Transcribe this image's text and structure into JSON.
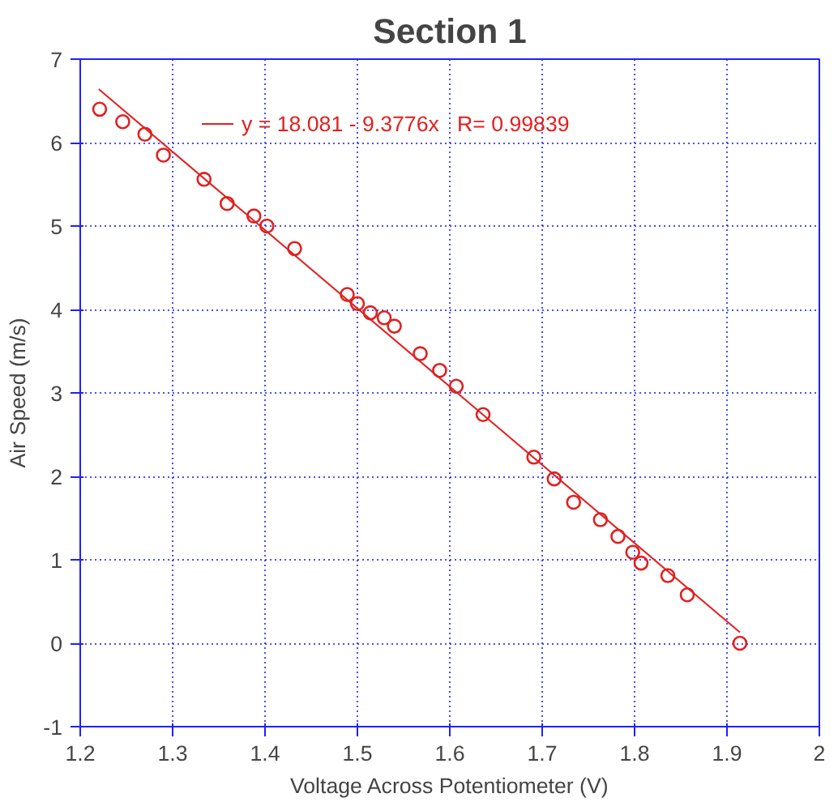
{
  "chart_data": {
    "type": "scatter",
    "title": "Section 1",
    "xlabel": "Voltage Across Potentiometer (V)",
    "ylabel": "Air Speed (m/s)",
    "xlim": [
      1.2,
      2
    ],
    "ylim": [
      -1,
      7
    ],
    "xticks": [
      1.2,
      1.3,
      1.4,
      1.5,
      1.6,
      1.7,
      1.8,
      1.9,
      2
    ],
    "yticks": [
      -1,
      0,
      1,
      2,
      3,
      4,
      5,
      6,
      7
    ],
    "grid": true,
    "legend": "top left",
    "series": [
      {
        "marker": "circle",
        "color": "#e02020",
        "x": [
          1.221,
          1.246,
          1.27,
          1.29,
          1.334,
          1.359,
          1.388,
          1.402,
          1.432,
          1.489,
          1.5,
          1.514,
          1.529,
          1.54,
          1.568,
          1.589,
          1.607,
          1.636,
          1.691,
          1.713,
          1.734,
          1.763,
          1.782,
          1.798,
          1.807,
          1.836,
          1.857,
          1.914
        ],
        "values": [
          6.4,
          6.25,
          6.1,
          5.85,
          5.56,
          5.27,
          5.12,
          5.0,
          4.73,
          4.18,
          4.07,
          3.96,
          3.9,
          3.8,
          3.47,
          3.27,
          3.08,
          2.74,
          2.23,
          1.97,
          1.69,
          1.48,
          1.28,
          1.09,
          0.96,
          0.81,
          0.58,
          0.0
        ]
      },
      {
        "type": "line",
        "marker": "none",
        "name": "y = 18.081 - 9.3776x   R= 0.99839",
        "color": "#e02020",
        "x": [
          1.22,
          1.914
        ],
        "values": [
          6.64,
          0.13
        ]
      }
    ]
  }
}
